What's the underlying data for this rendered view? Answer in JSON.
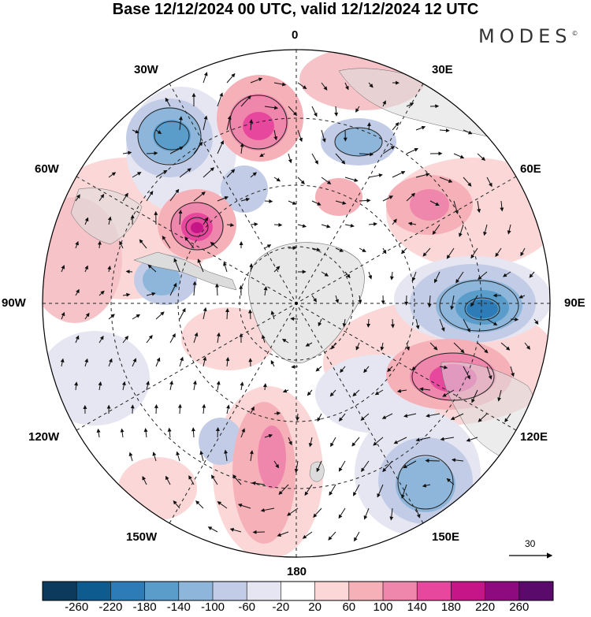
{
  "title": "Base 12/12/2024 00 UTC, valid 12/12/2024 12 UTC",
  "logo": {
    "text": "MODES",
    "mark": "©"
  },
  "longitude_labels": {
    "lon_0": "0",
    "lon_30e": "30E",
    "lon_60e": "60E",
    "lon_90e": "90E",
    "lon_120e": "120E",
    "lon_150e": "150E",
    "lon_180": "180",
    "lon_150w": "150W",
    "lon_120w": "120W",
    "lon_90w": "90W",
    "lon_60w": "60W",
    "lon_30w": "30W"
  },
  "reference_vector": {
    "label": "30"
  },
  "colorbar": {
    "ticks": [
      "-260",
      "-220",
      "-180",
      "-140",
      "-100",
      "-60",
      "-20",
      "20",
      "60",
      "100",
      "140",
      "180",
      "220",
      "260"
    ],
    "colors": [
      "#0b3a5c",
      "#0e5b8f",
      "#2d7cb7",
      "#5a9dcb",
      "#8eb6da",
      "#c2cce6",
      "#e6e6f2",
      "#ffffff",
      "#fbd7d7",
      "#f6b0b8",
      "#ef86ab",
      "#e7489d",
      "#c51586",
      "#8e0b7f",
      "#5a0a6b"
    ]
  },
  "projection": "south-polar-stereographic"
}
